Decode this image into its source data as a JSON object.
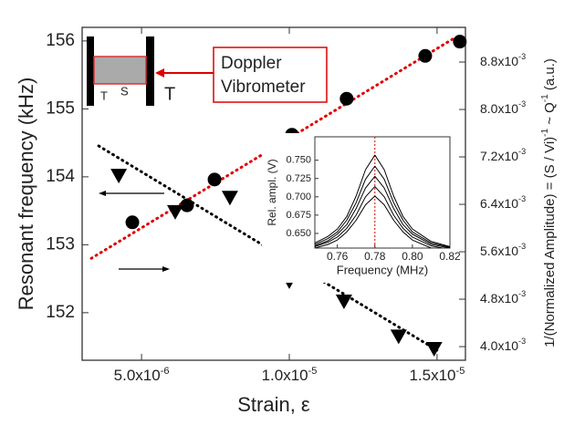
{
  "schematic": {
    "left_clamp": "T",
    "sample": "S",
    "right_clamp": "T",
    "device_line1": "Doppler",
    "device_line2": "Vibrometer"
  },
  "chart_data": [
    {
      "type": "scatter",
      "xlabel": "Strain, ε",
      "ylabel": "Resonant frequency (kHz)",
      "y2label_parts": [
        "1/(Normalized Amplitude) = (S / Vi)",
        "-1",
        " ~ Q",
        "-1",
        " (a.u.)"
      ],
      "xlim": [
        2.99e-06,
        1.596e-05
      ],
      "ylim": [
        151.3,
        156.2
      ],
      "y2lim": [
        0.00377,
        0.009385
      ],
      "xticks": [
        {
          "value": 5e-06,
          "label": "5.0x10",
          "exponent": "-6"
        },
        {
          "value": 1e-05,
          "label": "1.0x10",
          "exponent": "-5"
        },
        {
          "value": 1.5e-05,
          "label": "1.5x10",
          "exponent": "-5"
        }
      ],
      "yticks": [
        152,
        153,
        154,
        155,
        156
      ],
      "y2ticks": [
        {
          "value": 0.004,
          "label": "4.0x10",
          "exponent": "-3"
        },
        {
          "value": 0.0048,
          "label": "4.8x10",
          "exponent": "-3"
        },
        {
          "value": 0.0056,
          "label": "5.6x10",
          "exponent": "-3"
        },
        {
          "value": 0.0064,
          "label": "6.4x10",
          "exponent": "-3"
        },
        {
          "value": 0.0072,
          "label": "7.2x10",
          "exponent": "-3"
        },
        {
          "value": 0.008,
          "label": "8.0x10",
          "exponent": "-3"
        },
        {
          "value": 0.0088,
          "label": "8.8x10",
          "exponent": "-3"
        }
      ],
      "series": [
        {
          "marker": "circle",
          "color": "#000000",
          "axis": "y",
          "x": [
            4.69e-06,
            6.54e-06,
            7.47e-06,
            1.009e-05,
            1.194e-05,
            1.46e-05,
            1.577e-05
          ],
          "values": [
            153.33,
            153.58,
            153.96,
            154.62,
            155.15,
            155.78,
            155.99
          ]
        },
        {
          "marker": "triangle",
          "color": "#000000",
          "axis": "y2",
          "x": [
            4.23e-06,
            6.14e-06,
            7.99e-06,
            1e-05,
            1.185e-05,
            1.37e-05,
            1.49e-05
          ],
          "values": [
            0.00689,
            0.00628,
            0.00652,
            0.00511,
            0.00477,
            0.00418,
            0.00397
          ]
        }
      ],
      "fits": [
        {
          "color": "#e00000",
          "axis": "y",
          "x": [
            3.3e-06,
            1.565e-05
          ],
          "values": [
            152.8,
            156.06
          ]
        },
        {
          "color": "#000000",
          "axis": "y2",
          "x": [
            3.55e-06,
            1.503e-05
          ],
          "values": [
            0.007385,
            0.00393
          ]
        }
      ]
    },
    {
      "type": "line",
      "xlabel": "Frequency (MHz)",
      "ylabel": "Rel. ampl. (V)",
      "xlim": [
        0.748,
        0.82
      ],
      "ylim": [
        0.63,
        0.782
      ],
      "xticks": [
        0.76,
        0.78,
        {
          "value": 0.8,
          "label": "0.80"
        },
        0.82
      ],
      "yticks": [
        {
          "value": 0.65,
          "label": "0.650"
        },
        {
          "value": 0.675,
          "label": "0.675"
        },
        {
          "value": 0.7,
          "label": "0.700"
        },
        {
          "value": 0.725,
          "label": "0.725"
        },
        {
          "value": 0.75,
          "label": "0.750"
        }
      ],
      "vline": 0.78,
      "vline_color": "#e00000",
      "x": [
        0.748,
        0.755,
        0.76,
        0.765,
        0.77,
        0.775,
        0.78,
        0.785,
        0.79,
        0.795,
        0.8,
        0.81,
        0.82
      ],
      "series": [
        {
          "color": "#000000",
          "values": [
            0.637,
            0.646,
            0.656,
            0.673,
            0.701,
            0.737,
            0.757,
            0.737,
            0.701,
            0.673,
            0.656,
            0.639,
            0.632
          ]
        },
        {
          "color": "#000000",
          "values": [
            0.635,
            0.643,
            0.652,
            0.668,
            0.692,
            0.724,
            0.742,
            0.724,
            0.692,
            0.668,
            0.652,
            0.637,
            0.631
          ]
        },
        {
          "color": "#000000",
          "values": [
            0.633,
            0.64,
            0.649,
            0.662,
            0.684,
            0.712,
            0.728,
            0.712,
            0.684,
            0.662,
            0.649,
            0.635,
            0.63
          ]
        },
        {
          "color": "#000000",
          "values": [
            0.632,
            0.638,
            0.645,
            0.657,
            0.675,
            0.7,
            0.714,
            0.7,
            0.675,
            0.657,
            0.645,
            0.633,
            0.628
          ]
        },
        {
          "color": "#000000",
          "values": [
            0.63,
            0.635,
            0.641,
            0.652,
            0.668,
            0.689,
            0.701,
            0.689,
            0.668,
            0.652,
            0.641,
            0.63,
            0.627
          ]
        }
      ]
    }
  ]
}
